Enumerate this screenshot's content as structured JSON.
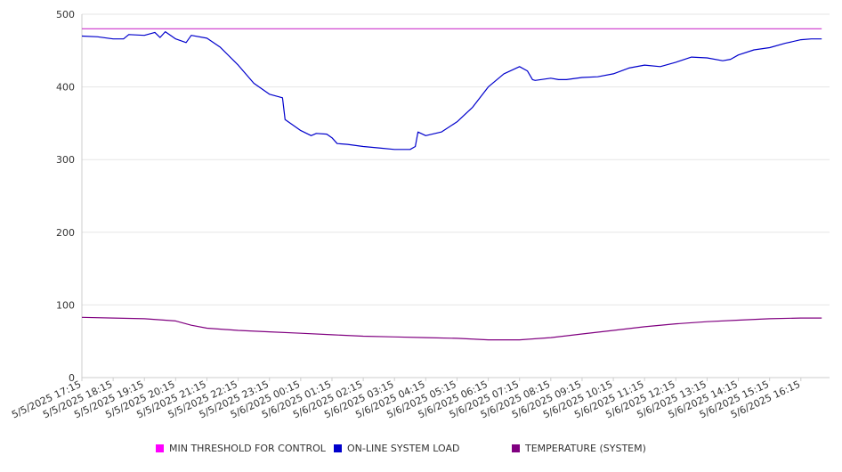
{
  "chart_data": {
    "type": "line",
    "title": "",
    "xlabel": "",
    "ylabel": "",
    "ylim": [
      0,
      500
    ],
    "yticks": [
      0,
      100,
      200,
      300,
      400,
      500
    ],
    "grid": true,
    "legend_position": "bottom",
    "xticks": [
      "5/5/2025 17:15",
      "5/5/2025 18:15",
      "5/5/2025 19:15",
      "5/5/2025 20:15",
      "5/5/2025 21:15",
      "5/5/2025 22:15",
      "5/5/2025 23:15",
      "5/6/2025 00:15",
      "5/6/2025 01:15",
      "5/6/2025 02:15",
      "5/6/2025 03:15",
      "5/6/2025 04:15",
      "5/6/2025 05:15",
      "5/6/2025 06:15",
      "5/6/2025 07:15",
      "5/6/2025 08:15",
      "5/6/2025 09:15",
      "5/6/2025 10:15",
      "5/6/2025 11:15",
      "5/6/2025 12:15",
      "5/6/2025 13:15",
      "5/6/2025 14:15",
      "5/6/2025 15:15",
      "5/6/2025 16:15"
    ],
    "series": [
      {
        "name": "MIN THRESHOLD FOR CONTROL",
        "color": "#cc33cc",
        "x": [
          "5/5/2025 17:15",
          "5/6/2025 16:55"
        ],
        "values": [
          480,
          480
        ]
      },
      {
        "name": "ON-LINE SYSTEM LOAD",
        "color": "#0000cc",
        "x": [
          "5/5/2025 17:15",
          "5/5/2025 17:45",
          "5/5/2025 18:15",
          "5/5/2025 18:35",
          "5/5/2025 18:45",
          "5/5/2025 19:15",
          "5/5/2025 19:35",
          "5/5/2025 19:45",
          "5/5/2025 19:55",
          "5/5/2025 20:15",
          "5/5/2025 20:35",
          "5/5/2025 20:45",
          "5/5/2025 21:15",
          "5/5/2025 21:40",
          "5/5/2025 22:15",
          "5/5/2025 22:45",
          "5/5/2025 23:15",
          "5/5/2025 23:40",
          "5/5/2025 23:45",
          "5/6/2025 00:15",
          "5/6/2025 00:35",
          "5/6/2025 00:45",
          "5/6/2025 01:05",
          "5/6/2025 01:15",
          "5/6/2025 01:25",
          "5/6/2025 01:45",
          "5/6/2025 02:15",
          "5/6/2025 02:45",
          "5/6/2025 03:15",
          "5/6/2025 03:45",
          "5/6/2025 03:55",
          "5/6/2025 04:00",
          "5/6/2025 04:15",
          "5/6/2025 04:45",
          "5/6/2025 05:15",
          "5/6/2025 05:45",
          "5/6/2025 06:15",
          "5/6/2025 06:45",
          "5/6/2025 07:15",
          "5/6/2025 07:30",
          "5/6/2025 07:40",
          "5/6/2025 07:45",
          "5/6/2025 08:15",
          "5/6/2025 08:30",
          "5/6/2025 08:45",
          "5/6/2025 09:15",
          "5/6/2025 09:45",
          "5/6/2025 10:15",
          "5/6/2025 10:45",
          "5/6/2025 11:15",
          "5/6/2025 11:45",
          "5/6/2025 12:15",
          "5/6/2025 12:45",
          "5/6/2025 13:15",
          "5/6/2025 13:45",
          "5/6/2025 14:00",
          "5/6/2025 14:15",
          "5/6/2025 14:45",
          "5/6/2025 15:15",
          "5/6/2025 15:45",
          "5/6/2025 16:15",
          "5/6/2025 16:35",
          "5/6/2025 16:55"
        ],
        "values": [
          470,
          469,
          466,
          466,
          472,
          471,
          475,
          468,
          476,
          466,
          461,
          471,
          467,
          455,
          430,
          405,
          390,
          385,
          355,
          340,
          333,
          336,
          335,
          330,
          322,
          321,
          318,
          316,
          314,
          314,
          318,
          338,
          333,
          338,
          352,
          372,
          400,
          418,
          428,
          422,
          410,
          409,
          412,
          410,
          410,
          413,
          414,
          418,
          426,
          430,
          428,
          434,
          441,
          440,
          436,
          438,
          444,
          451,
          454,
          460,
          465,
          466,
          466
        ]
      },
      {
        "name": "TEMPERATURE (SYSTEM)",
        "color": "#800080",
        "x": [
          "5/5/2025 17:15",
          "5/5/2025 18:15",
          "5/5/2025 19:15",
          "5/5/2025 20:15",
          "5/5/2025 20:45",
          "5/5/2025 21:15",
          "5/5/2025 22:15",
          "5/5/2025 23:15",
          "5/6/2025 00:15",
          "5/6/2025 01:15",
          "5/6/2025 02:15",
          "5/6/2025 03:15",
          "5/6/2025 04:15",
          "5/6/2025 05:15",
          "5/6/2025 06:15",
          "5/6/2025 07:15",
          "5/6/2025 08:15",
          "5/6/2025 09:15",
          "5/6/2025 10:15",
          "5/6/2025 11:15",
          "5/6/2025 12:15",
          "5/6/2025 13:15",
          "5/6/2025 14:15",
          "5/6/2025 15:15",
          "5/6/2025 16:15",
          "5/6/2025 16:55"
        ],
        "values": [
          83,
          82,
          81,
          78,
          72,
          68,
          65,
          63,
          61,
          59,
          57,
          56,
          55,
          54,
          52,
          52,
          55,
          60,
          65,
          70,
          74,
          77,
          79,
          81,
          82,
          82
        ]
      }
    ]
  },
  "legend": [
    {
      "label": "MIN THRESHOLD FOR CONTROL",
      "color": "#ff00ff"
    },
    {
      "label": "ON-LINE SYSTEM LOAD",
      "color": "#0000cc"
    },
    {
      "label": "TEMPERATURE (SYSTEM)",
      "color": "#800080"
    }
  ]
}
